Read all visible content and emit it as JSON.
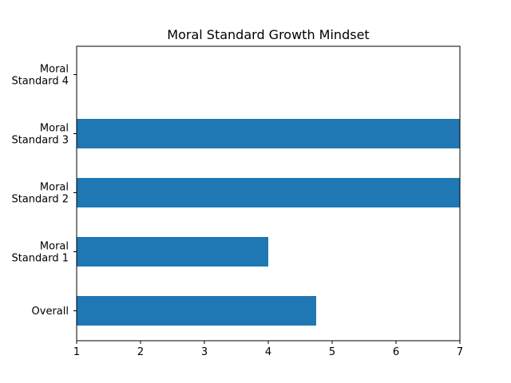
{
  "chart_data": {
    "type": "bar",
    "orientation": "horizontal",
    "title": "Moral Standard Growth Mindset",
    "xlabel": "",
    "ylabel": "",
    "categories": [
      "Overall",
      "Moral\nStandard 1",
      "Moral\nStandard 2",
      "Moral\nStandard 3",
      "Moral\nStandard 4"
    ],
    "values": [
      4.75,
      4.0,
      7.0,
      7.0,
      1.0
    ],
    "xlim": [
      1,
      7
    ],
    "xticks": [
      1,
      2,
      3,
      4,
      5,
      6,
      7
    ],
    "grid": false,
    "legend": "none",
    "bar_color": "#1f77b4"
  }
}
